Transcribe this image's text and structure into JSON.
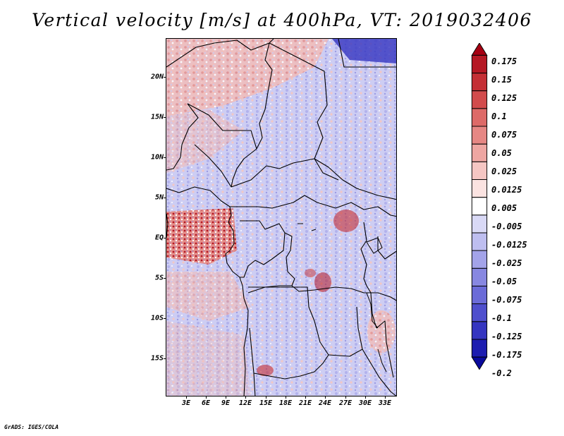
{
  "title": "Vertical velocity [m/s] at 400hPa, VT: 2019032406",
  "credit": "GrADS: IGES/COLA",
  "map": {
    "lat_labels": [
      "20N",
      "15N",
      "10N",
      "5N",
      "EQ",
      "5S",
      "10S",
      "15S"
    ],
    "lon_labels": [
      "3E",
      "6E",
      "9E",
      "12E",
      "15E",
      "18E",
      "21E",
      "24E",
      "27E",
      "30E",
      "33E"
    ]
  },
  "colorbar": {
    "labels": [
      "0.175",
      "0.15",
      "0.125",
      "0.1",
      "0.075",
      "0.05",
      "0.025",
      "0.0125",
      "0.005",
      "-0.005",
      "-0.0125",
      "-0.025",
      "-0.05",
      "-0.075",
      "-0.1",
      "-0.125",
      "-0.175",
      "-0.2"
    ],
    "colors": [
      "#a60012",
      "#b51824",
      "#c42f35",
      "#d24b4c",
      "#dd6a68",
      "#e68784",
      "#eea6a2",
      "#f5c6c3",
      "#fbe3e1",
      "#ffffff",
      "#d9d9f6",
      "#bebef0",
      "#a3a3e9",
      "#8787e1",
      "#6b6bd8",
      "#4f4fcd",
      "#3535c0",
      "#1d1db0",
      "#0a0a9c"
    ]
  }
}
